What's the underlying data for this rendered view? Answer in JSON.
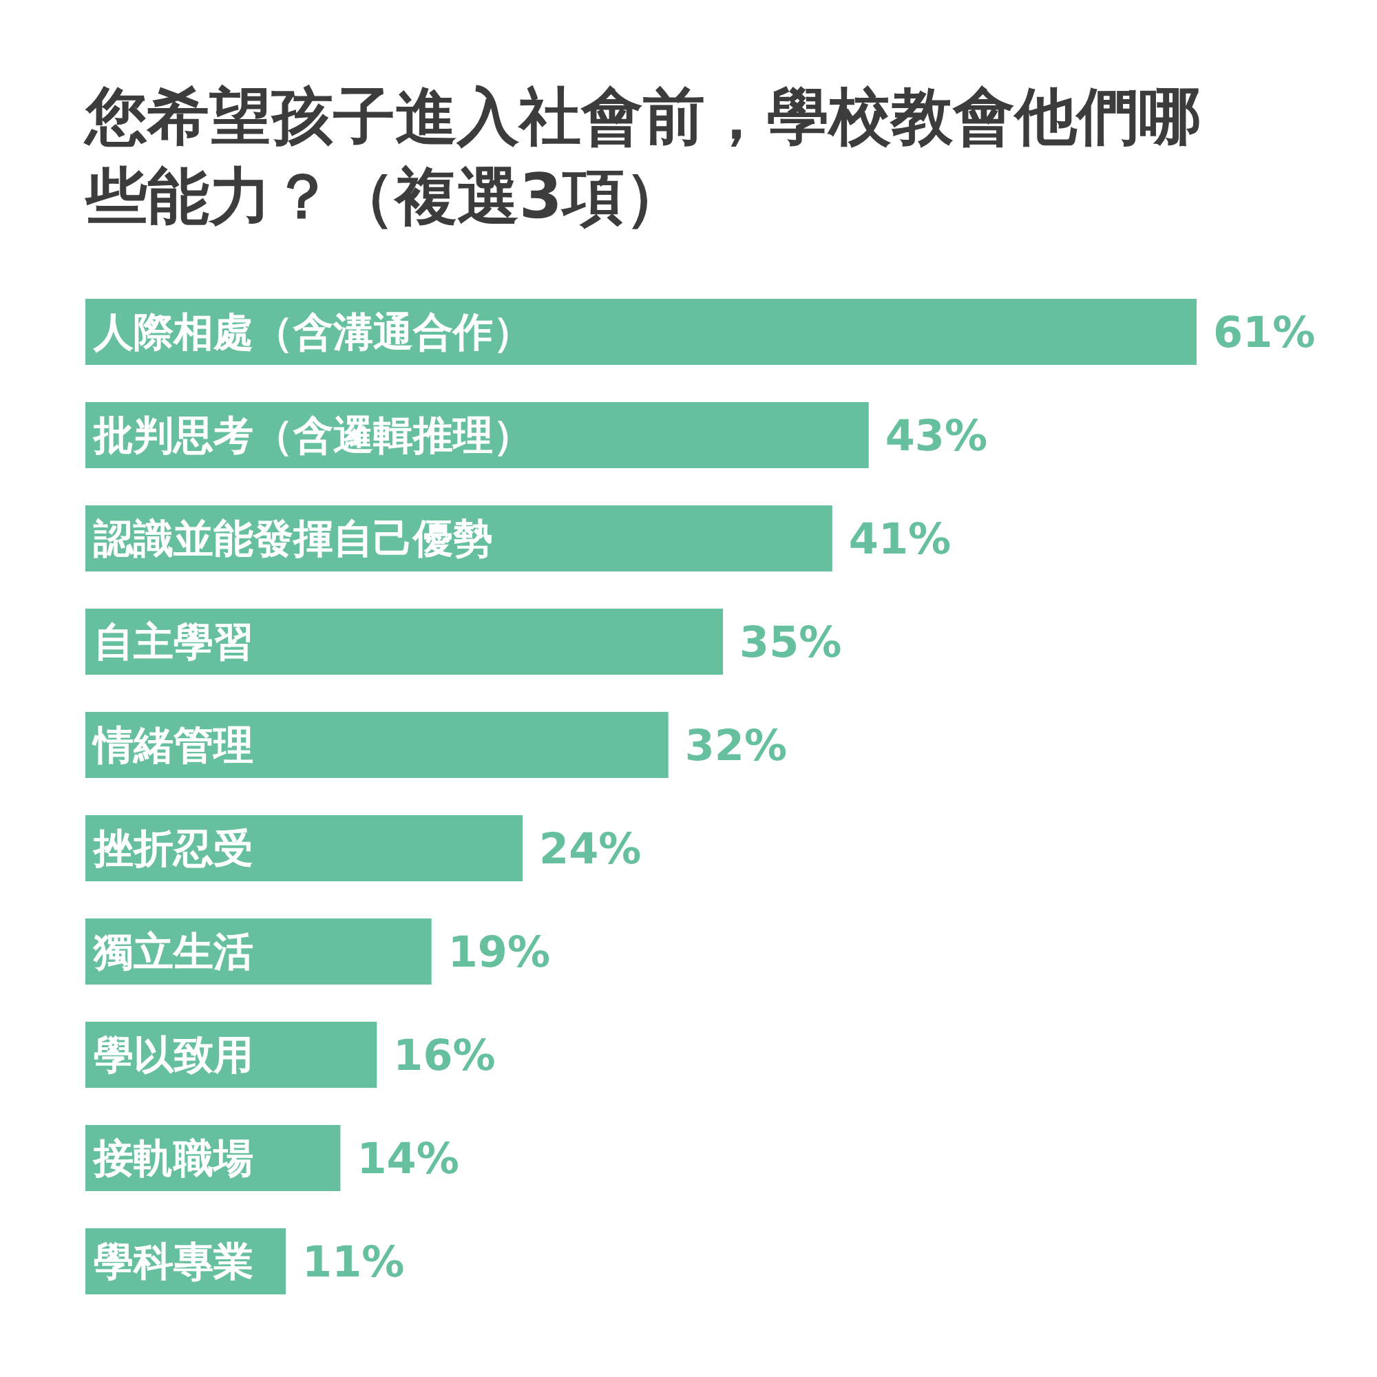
{
  "chart_data": {
    "type": "bar",
    "orientation": "horizontal",
    "title": "您希望孩子進入社會前，學校教會他們哪些能力？（複選3項）",
    "categories": [
      "人際相處（含溝通合作）",
      "批判思考（含邏輯推理）",
      "認識並能發揮自己優勢",
      "自主學習",
      "情緒管理",
      "挫折忍受",
      "獨立生活",
      "學以致用",
      "接軌職場",
      "學科專業"
    ],
    "values": [
      61,
      43,
      41,
      35,
      32,
      24,
      19,
      16,
      14,
      11
    ],
    "value_labels": [
      "61%",
      "43%",
      "41%",
      "35%",
      "32%",
      "24%",
      "19%",
      "16%",
      "14%",
      "11%"
    ],
    "color": "#66c09e"
  }
}
